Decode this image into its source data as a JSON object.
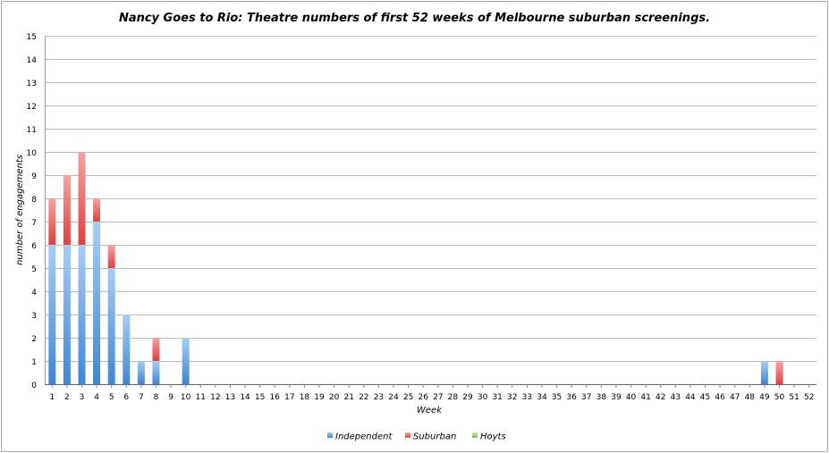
{
  "chart_data": {
    "type": "bar",
    "stacked": true,
    "title": "Nancy Goes to Rio: Theatre numbers of first 52 weeks of Melbourne suburban screenings.",
    "xlabel": "Week",
    "ylabel": "number of engagements",
    "ylim": [
      0,
      15
    ],
    "yticks": [
      "0",
      "1",
      "2",
      "3",
      "4",
      "5",
      "6",
      "7",
      "8",
      "9",
      "10",
      "11",
      "12",
      "13",
      "14",
      "15"
    ],
    "grid": true,
    "legend_position": "bottom",
    "categories": [
      "1",
      "2",
      "3",
      "4",
      "5",
      "6",
      "7",
      "8",
      "9",
      "10",
      "11",
      "12",
      "13",
      "14",
      "15",
      "16",
      "17",
      "18",
      "19",
      "20",
      "21",
      "22",
      "23",
      "24",
      "25",
      "26",
      "27",
      "28",
      "29",
      "30",
      "31",
      "32",
      "33",
      "34",
      "35",
      "36",
      "37",
      "38",
      "39",
      "40",
      "41",
      "42",
      "43",
      "44",
      "45",
      "46",
      "47",
      "48",
      "49",
      "50",
      "51",
      "52"
    ],
    "series": [
      {
        "name": "Independent",
        "color": "#4a90d9",
        "values": [
          6,
          6,
          6,
          7,
          5,
          3,
          1,
          1,
          0,
          2,
          0,
          0,
          0,
          0,
          0,
          0,
          0,
          0,
          0,
          0,
          0,
          0,
          0,
          0,
          0,
          0,
          0,
          0,
          0,
          0,
          0,
          0,
          0,
          0,
          0,
          0,
          0,
          0,
          0,
          0,
          0,
          0,
          0,
          0,
          0,
          0,
          0,
          0,
          1,
          0,
          0,
          0
        ]
      },
      {
        "name": "Suburban",
        "color": "#e84a47",
        "values": [
          2,
          3,
          4,
          1,
          1,
          0,
          0,
          1,
          0,
          0,
          0,
          0,
          0,
          0,
          0,
          0,
          0,
          0,
          0,
          0,
          0,
          0,
          0,
          0,
          0,
          0,
          0,
          0,
          0,
          0,
          0,
          0,
          0,
          0,
          0,
          0,
          0,
          0,
          0,
          0,
          0,
          0,
          0,
          0,
          0,
          0,
          0,
          0,
          0,
          1,
          0,
          0
        ]
      },
      {
        "name": "Hoyts",
        "color": "#8fd35a",
        "values": [
          0,
          0,
          0,
          0,
          0,
          0,
          0,
          0,
          0,
          0,
          0,
          0,
          0,
          0,
          0,
          0,
          0,
          0,
          0,
          0,
          0,
          0,
          0,
          0,
          0,
          0,
          0,
          0,
          0,
          0,
          0,
          0,
          0,
          0,
          0,
          0,
          0,
          0,
          0,
          0,
          0,
          0,
          0,
          0,
          0,
          0,
          0,
          0,
          0,
          0,
          0,
          0
        ]
      }
    ]
  }
}
